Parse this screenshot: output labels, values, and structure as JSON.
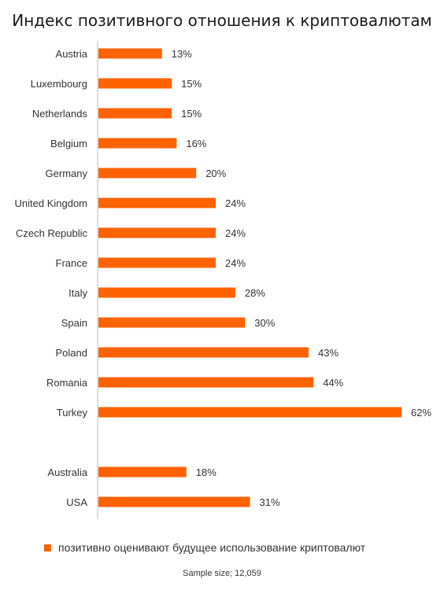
{
  "colors": {
    "bar": "#ff6200",
    "axis": "#bbbbbb"
  },
  "chart_data": {
    "type": "bar",
    "orientation": "horizontal",
    "title": "Индекс позитивного отношения к криптовалютам",
    "categories": [
      "Austria",
      "Luxembourg",
      "Netherlands",
      "Belgium",
      "Germany",
      "United Kingdom",
      "Czech Republic",
      "France",
      "Italy",
      "Spain",
      "Poland",
      "Romania",
      "Turkey",
      "Australia",
      "USA"
    ],
    "series": [
      {
        "name": "позитивно оценивают будущее использование криптовалют",
        "values": [
          13,
          15,
          15,
          16,
          20,
          24,
          24,
          24,
          28,
          30,
          43,
          44,
          62,
          18,
          31
        ]
      }
    ],
    "value_labels": [
      "13%",
      "15%",
      "15%",
      "16%",
      "20%",
      "24%",
      "24%",
      "24%",
      "28%",
      "30%",
      "43%",
      "44%",
      "62%",
      "18%",
      "31%"
    ],
    "xlim": [
      0,
      62
    ],
    "grid": false,
    "legend_position": "bottom",
    "note": "Sample size; 12,059"
  }
}
